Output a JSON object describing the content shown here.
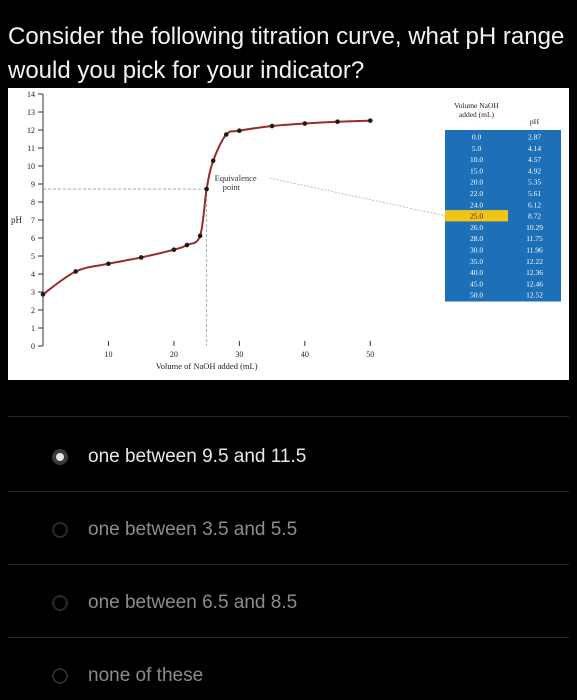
{
  "question": {
    "text": "Consider the following titration curve, what pH range would you pick for your indicator?"
  },
  "chart_data": {
    "type": "line",
    "title": "",
    "xlabel": "Volume of NaOH added (mL)",
    "ylabel": "pH",
    "xlim": [
      0,
      55
    ],
    "ylim": [
      0,
      14
    ],
    "x_ticks": [
      10,
      20,
      30,
      40,
      50
    ],
    "y_ticks": [
      0,
      1,
      2,
      3,
      4,
      5,
      6,
      7,
      8,
      9,
      10,
      11,
      12,
      13,
      14
    ],
    "annotation": {
      "text_line1": "Equivalence",
      "text_line2": "point",
      "x": 25,
      "y": 8.72
    },
    "series": [
      {
        "x": [
          0,
          5,
          10,
          15,
          20,
          22,
          24,
          25,
          26,
          28,
          30,
          35,
          40,
          45,
          50
        ],
        "y": [
          2.87,
          4.14,
          4.57,
          4.92,
          5.35,
          5.61,
          6.12,
          8.72,
          10.29,
          11.75,
          11.96,
          12.22,
          12.36,
          12.46,
          12.52
        ]
      }
    ],
    "table": {
      "header_volume_line1": "Volume NaOH",
      "header_volume_line2": "added (mL)",
      "header_ph": "pH",
      "highlight_row": 7,
      "rows": [
        [
          "0.0",
          "2.87"
        ],
        [
          "5.0",
          "4.14"
        ],
        [
          "10.0",
          "4.57"
        ],
        [
          "15.0",
          "4.92"
        ],
        [
          "20.0",
          "5.35"
        ],
        [
          "22.0",
          "5.61"
        ],
        [
          "24.0",
          "6.12"
        ],
        [
          "25.0",
          "8.72"
        ],
        [
          "26.0",
          "10.29"
        ],
        [
          "28.0",
          "11.75"
        ],
        [
          "30.0",
          "11.96"
        ],
        [
          "35.0",
          "12.22"
        ],
        [
          "40.0",
          "12.36"
        ],
        [
          "45.0",
          "12.46"
        ],
        [
          "50.0",
          "12.52"
        ]
      ]
    }
  },
  "options": [
    {
      "label": "one between 9.5 and 11.5",
      "selected": true
    },
    {
      "label": "one between 3.5 and 5.5",
      "selected": false
    },
    {
      "label": "one between 6.5 and 8.5",
      "selected": false
    },
    {
      "label": "none of these",
      "selected": false
    }
  ],
  "colors": {
    "curve": "#9b2a2a",
    "points": "#1a1a1a",
    "table_row": "#1d6fb8",
    "table_highlight": "#f2c418",
    "background": "#000000"
  }
}
